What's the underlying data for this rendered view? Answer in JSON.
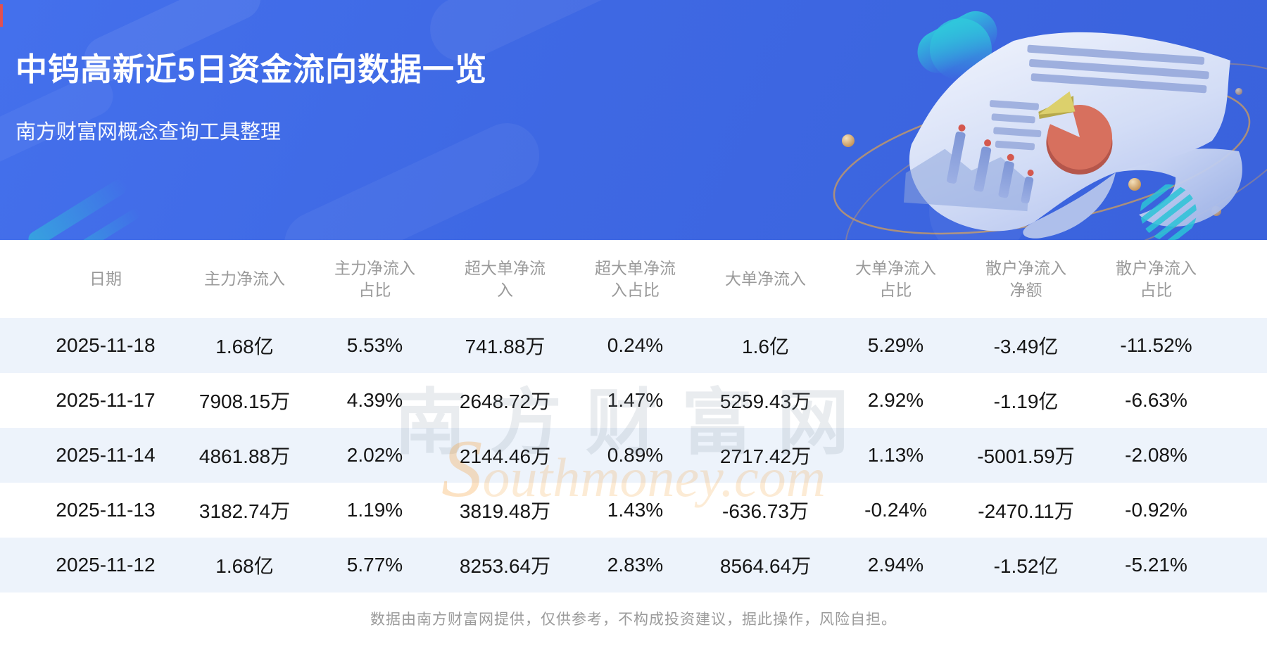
{
  "banner": {
    "title": "中钨高新近5日资金流向数据一览",
    "subtitle": "南方财富网概念查询工具整理",
    "bg_color": "#3e68e3",
    "accent_teal": "#2ccdd6",
    "illustration_icons": [
      "document-scroll-icon",
      "pie-chart-icon",
      "bar-chart-icon",
      "orbit-rings-icon"
    ]
  },
  "table": {
    "headers": [
      "日期",
      "主力净流入",
      "主力净流入\n占比",
      "超大单净流\n入",
      "超大单净流\n入占比",
      "大单净流入",
      "大单净流入\n占比",
      "散户净流入\n净额",
      "散户净流入\n占比"
    ],
    "rows": [
      [
        "2025-11-18",
        "1.68亿",
        "5.53%",
        "741.88万",
        "0.24%",
        "1.6亿",
        "5.29%",
        "-3.49亿",
        "-11.52%"
      ],
      [
        "2025-11-17",
        "7908.15万",
        "4.39%",
        "2648.72万",
        "1.47%",
        "5259.43万",
        "2.92%",
        "-1.19亿",
        "-6.63%"
      ],
      [
        "2025-11-14",
        "4861.88万",
        "2.02%",
        "2144.46万",
        "0.89%",
        "2717.42万",
        "1.13%",
        "-5001.59万",
        "-2.08%"
      ],
      [
        "2025-11-13",
        "3182.74万",
        "1.19%",
        "3819.48万",
        "1.43%",
        "-636.73万",
        "-0.24%",
        "-2470.11万",
        "-0.92%"
      ],
      [
        "2025-11-12",
        "1.68亿",
        "5.77%",
        "8253.64万",
        "2.83%",
        "8564.64万",
        "2.94%",
        "-1.52亿",
        "-5.21%"
      ]
    ],
    "alt_row_color": "#edf3fb",
    "header_text_color": "#9a9a9a",
    "cell_text_color": "#151515"
  },
  "watermark": {
    "cn": "南方财富网",
    "en": "Southmoney.com"
  },
  "footer": {
    "disclaimer": "数据由南方财富网提供，仅供参考，不构成投资建议，据此操作，风险自担。"
  },
  "chart_data": {
    "type": "table",
    "title": "中钨高新近5日资金流向数据一览",
    "columns": [
      "日期",
      "主力净流入",
      "主力净流入占比",
      "超大单净流入",
      "超大单净流入占比",
      "大单净流入",
      "大单净流入占比",
      "散户净流入净额",
      "散户净流入占比"
    ],
    "rows": [
      [
        "2025-11-18",
        "1.68亿",
        "5.53%",
        "741.88万",
        "0.24%",
        "1.6亿",
        "5.29%",
        "-3.49亿",
        "-11.52%"
      ],
      [
        "2025-11-17",
        "7908.15万",
        "4.39%",
        "2648.72万",
        "1.47%",
        "5259.43万",
        "2.92%",
        "-1.19亿",
        "-6.63%"
      ],
      [
        "2025-11-14",
        "4861.88万",
        "2.02%",
        "2144.46万",
        "0.89%",
        "2717.42万",
        "1.13%",
        "-5001.59万",
        "-2.08%"
      ],
      [
        "2025-11-13",
        "3182.74万",
        "1.19%",
        "3819.48万",
        "1.43%",
        "-636.73万",
        "-0.24%",
        "-2470.11万",
        "-0.92%"
      ],
      [
        "2025-11-12",
        "1.68亿",
        "5.77%",
        "8253.64万",
        "2.83%",
        "8564.64万",
        "2.94%",
        "-1.52亿",
        "-5.21%"
      ]
    ]
  }
}
